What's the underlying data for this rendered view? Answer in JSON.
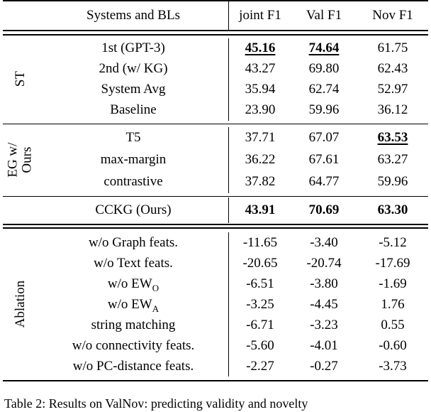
{
  "header": {
    "systems_col": "Systems and BLs",
    "metric_cols": [
      "joint F1",
      "Val F1",
      "Nov F1"
    ]
  },
  "sections": {
    "st": {
      "group_label": "ST",
      "rows": [
        {
          "label": "1st (GPT-3)",
          "values": [
            "45.16",
            "74.64",
            "61.75"
          ]
        },
        {
          "label": "2nd (w/ KG)",
          "values": [
            "43.27",
            "69.80",
            "62.43"
          ]
        },
        {
          "label": "System Avg",
          "values": [
            "35.94",
            "62.74",
            "52.97"
          ]
        },
        {
          "label": "Baseline",
          "values": [
            "23.90",
            "59.96",
            "36.12"
          ]
        }
      ]
    },
    "eg": {
      "group_label_line1": "EG w/",
      "group_label_line2": "Ours",
      "rows": [
        {
          "label": "T5",
          "values": [
            "37.71",
            "67.07",
            "63.53"
          ]
        },
        {
          "label": "max-margin",
          "values": [
            "36.22",
            "67.61",
            "63.27"
          ]
        },
        {
          "label": "contrastive",
          "values": [
            "37.82",
            "64.77",
            "59.96"
          ]
        }
      ]
    },
    "cckg": {
      "rows": [
        {
          "label": "CCKG (Ours)",
          "values": [
            "43.91",
            "70.69",
            "63.30"
          ]
        }
      ]
    },
    "ablation": {
      "group_label": "Ablation",
      "rows": [
        {
          "label": "w/o Graph feats.",
          "values": [
            "-11.65",
            "-3.40",
            "-5.12"
          ]
        },
        {
          "label": "w/o Text feats.",
          "values": [
            "-20.65",
            "-20.74",
            "-17.69"
          ]
        },
        {
          "label_main": "w/o EW",
          "label_sub": "O",
          "values": [
            "-6.51",
            "-3.80",
            "-1.69"
          ]
        },
        {
          "label_main": "w/o EW",
          "label_sub": "A",
          "values": [
            "-3.25",
            "-4.45",
            "1.76"
          ]
        },
        {
          "label": "string matching",
          "values": [
            "-6.71",
            "-3.23",
            "0.55"
          ]
        },
        {
          "label": "w/o connectivity feats.",
          "values": [
            "-5.60",
            "-4.01",
            "-0.60"
          ]
        },
        {
          "label": "w/o PC-distance feats.",
          "values": [
            "-2.27",
            "-0.27",
            "-3.73"
          ]
        }
      ]
    }
  },
  "caption": {
    "label": "Table 2:",
    "body": "Results on ValNov: predicting validity and novelty"
  }
}
